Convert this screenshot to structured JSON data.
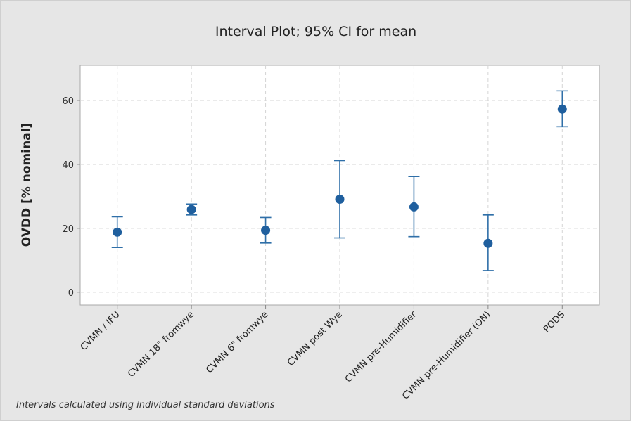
{
  "chart_data": {
    "type": "interval",
    "title": "Interval Plot; 95% CI for mean",
    "xlabel": "",
    "ylabel": "OVDD [% nominal]",
    "ylim": [
      -4,
      71
    ],
    "yticks": [
      0,
      20,
      40,
      60
    ],
    "grid": true,
    "categories": [
      "CVMN / IFU",
      "CVMN 18\" fromwye",
      "CVMN 6\" fromwye",
      "CVMN post Wye",
      "CVMN pre-Humidifier",
      "CVMN pre-Humidifier (ON)",
      "PODS"
    ],
    "series": [
      {
        "mean": [
          18.8,
          25.9,
          19.4,
          29.1,
          26.7,
          15.3,
          57.3
        ],
        "lower": [
          14.0,
          24.2,
          15.4,
          17.0,
          17.4,
          6.8,
          51.8
        ],
        "upper": [
          23.6,
          27.6,
          23.4,
          41.2,
          36.2,
          24.2,
          63.0
        ]
      }
    ],
    "footnote": "Intervals calculated using individual standard deviations",
    "colors": {
      "marker": "#1f5f9e",
      "errorbar": "#2f6fa8",
      "grid": "#d4d4d4",
      "plot_bg": "#ffffff",
      "page_bg": "#e6e6e6"
    }
  }
}
